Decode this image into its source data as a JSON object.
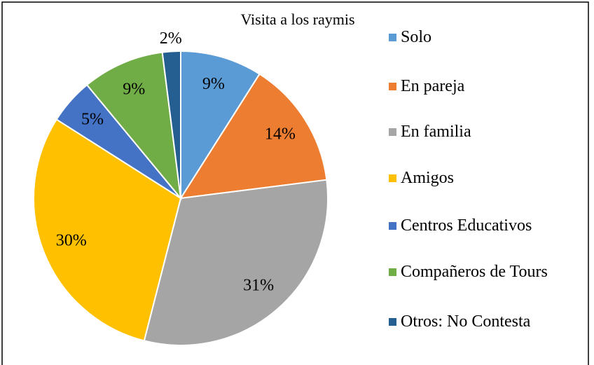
{
  "chart_data": {
    "type": "pie",
    "title": "Visita a los raymis",
    "categories": [
      "Solo",
      "En pareja",
      "En familia",
      "Amigos",
      "Centros Educativos",
      "Compañeros de Tours",
      "Otros: No Contesta"
    ],
    "values": [
      9,
      14,
      31,
      30,
      5,
      9,
      2
    ],
    "value_labels": [
      "9%",
      "14%",
      "31%",
      "30%",
      "5%",
      "9%",
      "2%"
    ],
    "colors": [
      "#5b9bd5",
      "#ed7d31",
      "#a5a5a5",
      "#ffc000",
      "#4472c4",
      "#70ad47",
      "#255e91"
    ],
    "legend": "right"
  }
}
